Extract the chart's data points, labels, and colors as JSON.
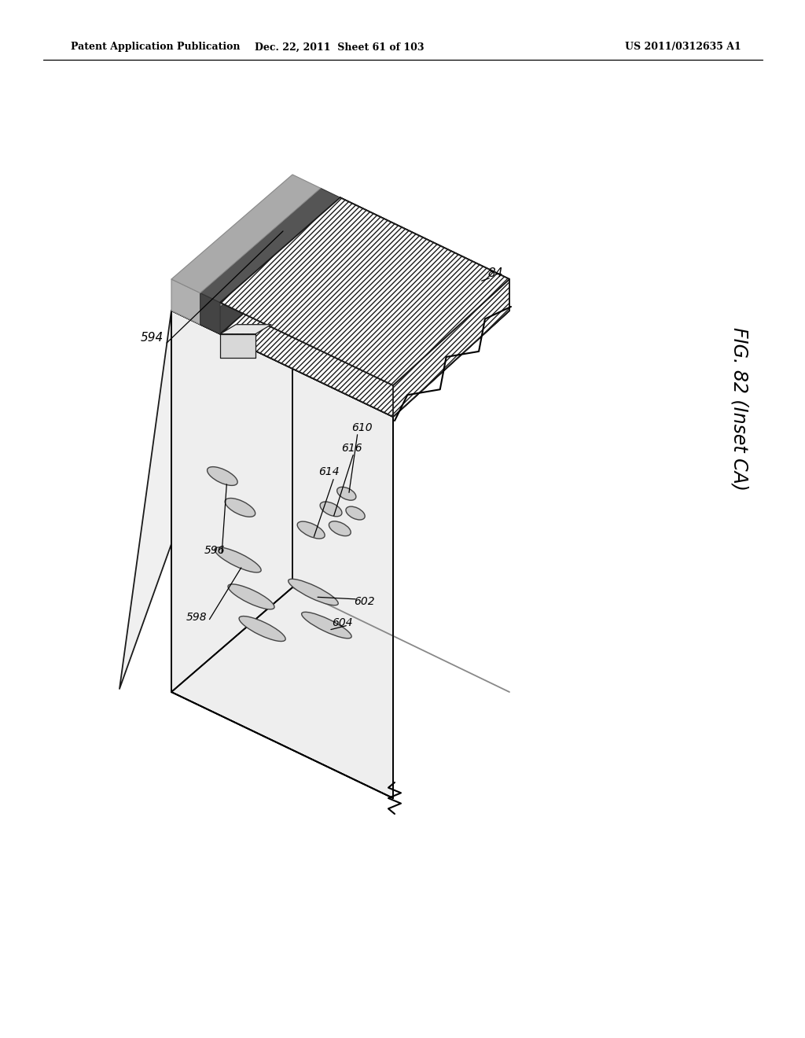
{
  "bg_color": "#ffffff",
  "header_left": "Patent Application Publication",
  "header_mid": "Dec. 22, 2011  Sheet 61 of 103",
  "header_right": "US 2011/0312635 A1",
  "fig_label": "FIG. 82 (Inset CA)"
}
